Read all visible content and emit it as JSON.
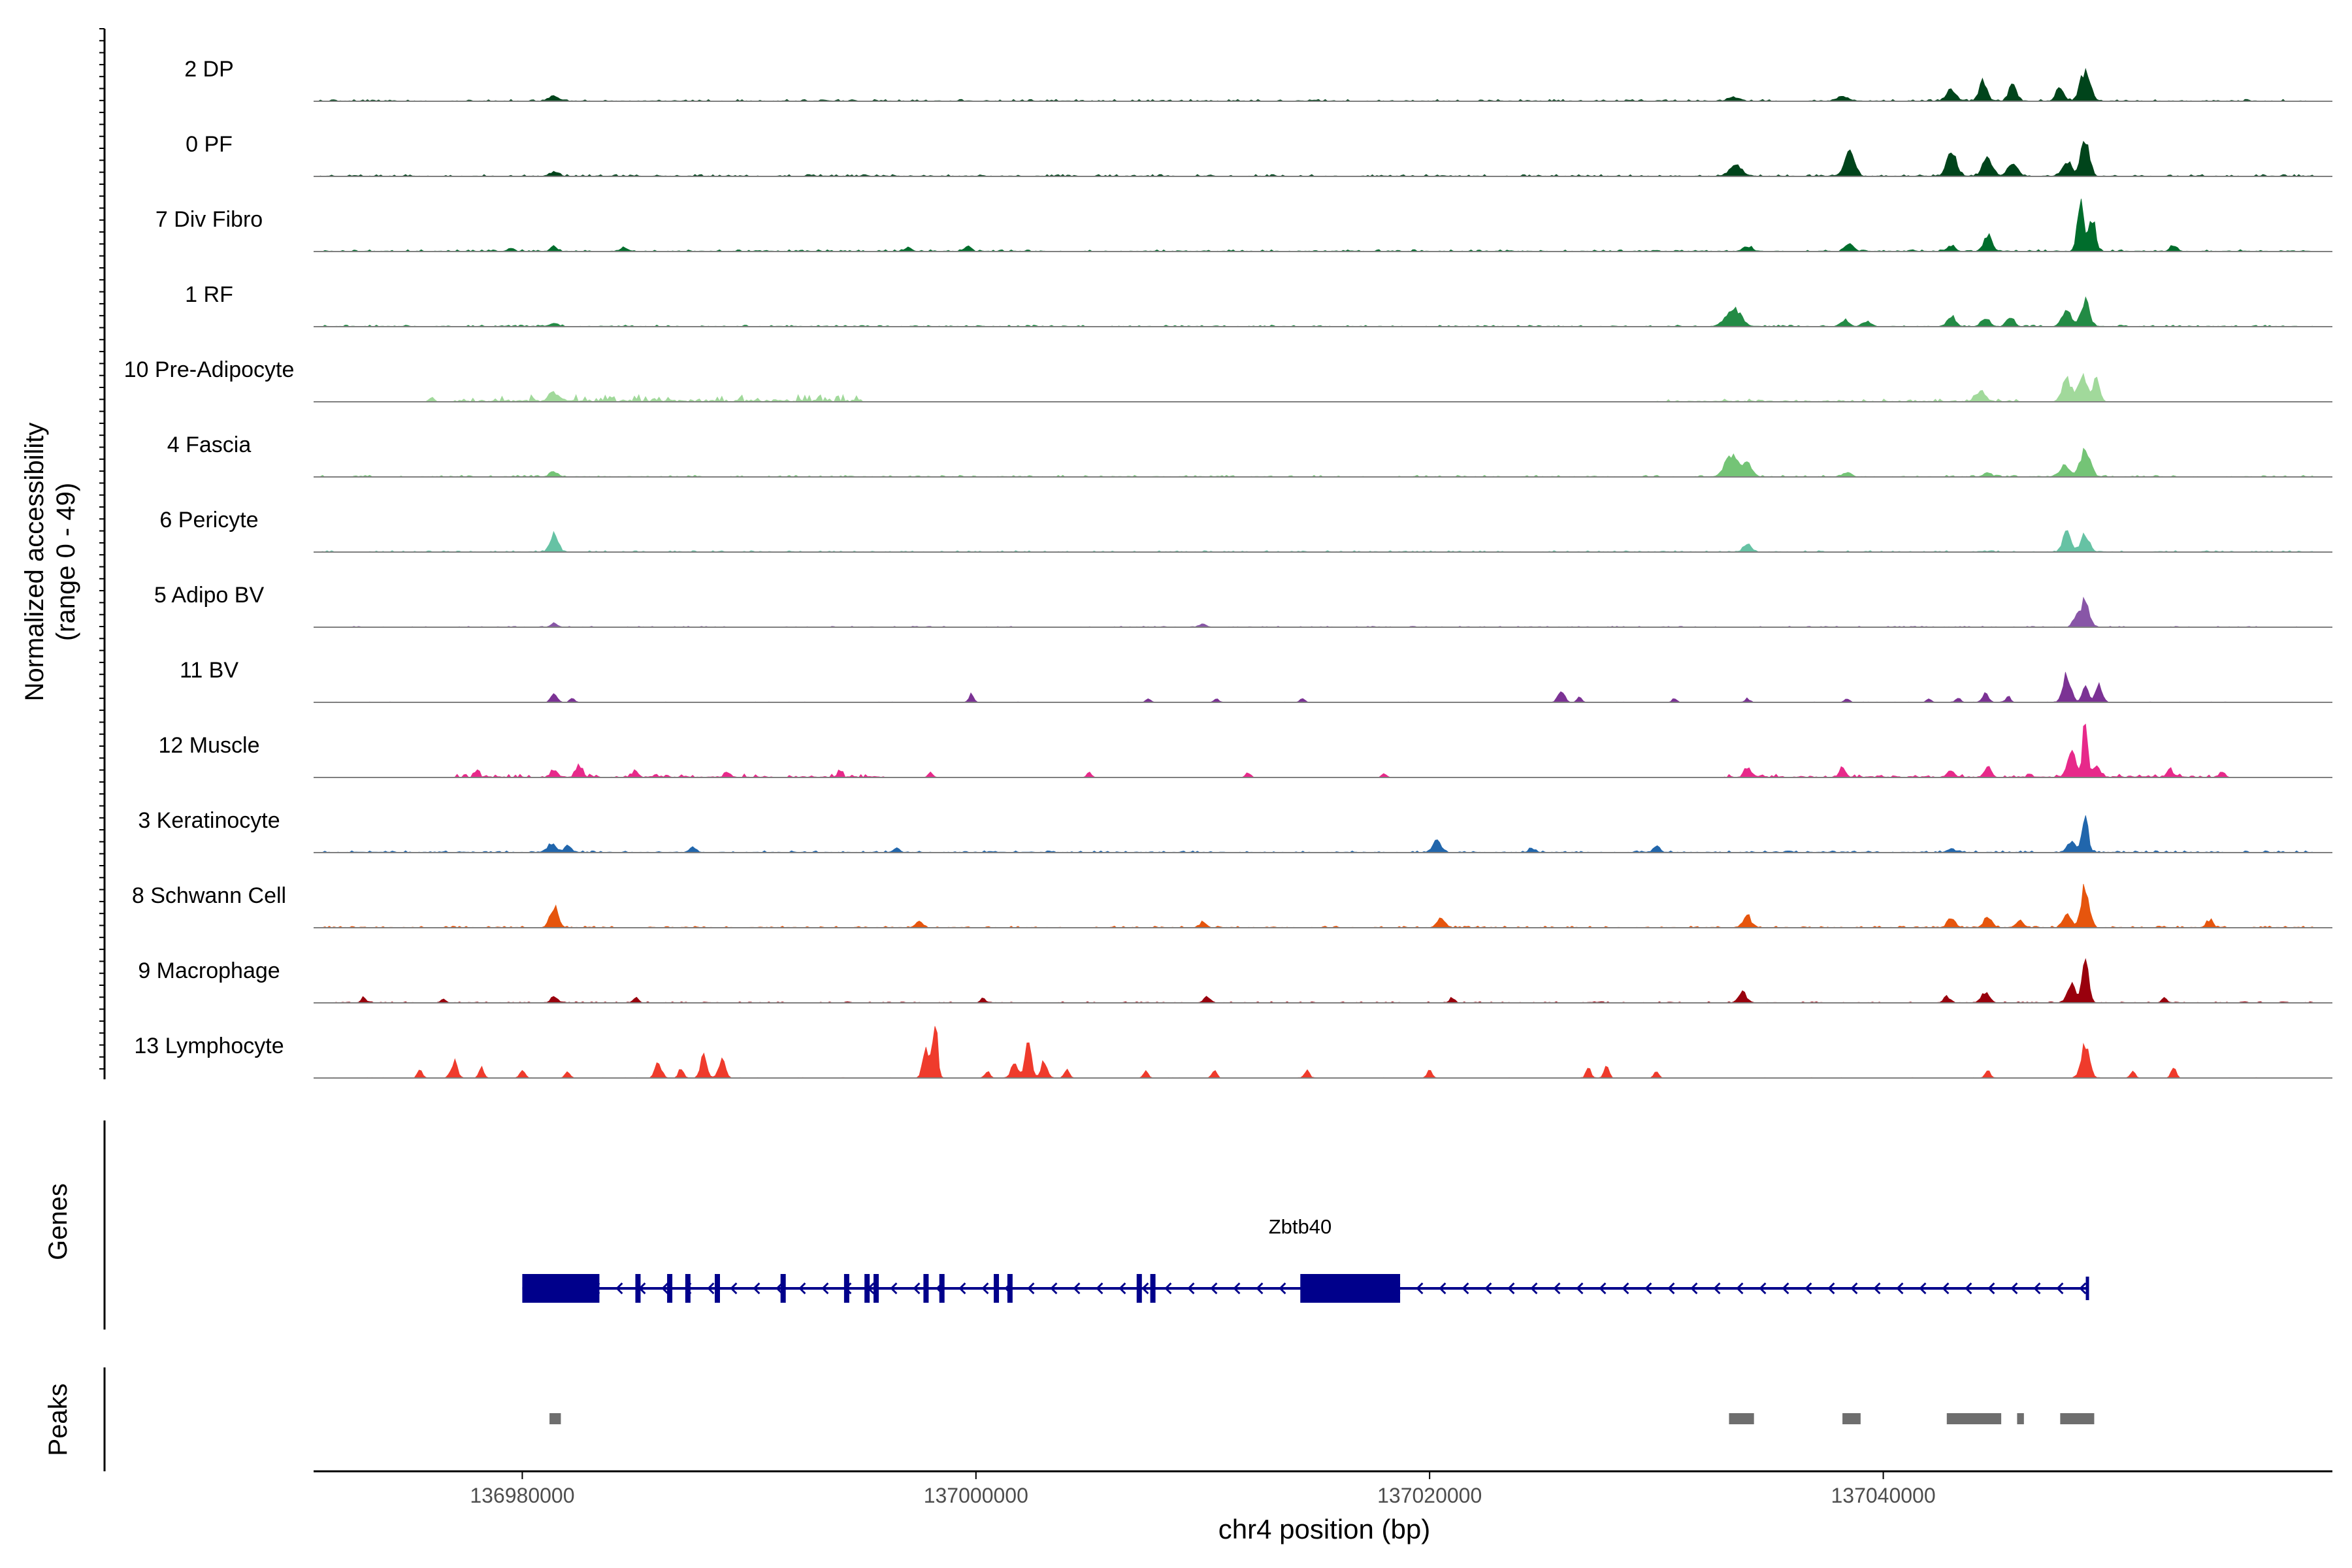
{
  "chart_data": {
    "type": "area",
    "description": "coverage",
    "y_axis_title_line1": "Normalized accessibility",
    "y_axis_title_line2": "(range 0 - 49)",
    "ylim": [
      0,
      49
    ],
    "xlim": [
      136970800,
      137059800
    ],
    "xlabel": "chr4 position (bp)",
    "x_ticks": [
      136980000,
      137000000,
      137020000,
      137040000
    ],
    "x_tick_labels": [
      "136980000",
      "137000000",
      "137020000",
      "137040000"
    ],
    "tracks": [
      {
        "label": "2 DP",
        "color": "#00441b",
        "noise": [
          [
            136971000,
            137059000,
            0.8
          ]
        ],
        "peaks": [
          [
            136981400,
            3.5,
            300
          ],
          [
            137033400,
            3,
            350
          ],
          [
            137038200,
            4,
            350
          ],
          [
            137043000,
            9,
            300
          ],
          [
            137044400,
            15,
            250
          ],
          [
            137045700,
            12,
            250
          ],
          [
            137047800,
            10,
            250
          ],
          [
            137048900,
            25,
            300
          ]
        ]
      },
      {
        "label": "0 PF",
        "color": "#00441b",
        "noise": [
          [
            136971000,
            137059000,
            0.8
          ]
        ],
        "peaks": [
          [
            136981400,
            3,
            300
          ],
          [
            137033500,
            8,
            400
          ],
          [
            137038500,
            20,
            300
          ],
          [
            137043000,
            20,
            300
          ],
          [
            137044600,
            15,
            300
          ],
          [
            137045700,
            10,
            300
          ],
          [
            137048100,
            12,
            300
          ],
          [
            137048900,
            32,
            250
          ]
        ]
      },
      {
        "label": "7 Div Fibro",
        "color": "#006d2c",
        "noise": [
          [
            136971000,
            137059000,
            0.8
          ]
        ],
        "peaks": [
          [
            136979500,
            2.5,
            200
          ],
          [
            136981400,
            4,
            200
          ],
          [
            136984500,
            3.5,
            200
          ],
          [
            136997000,
            3,
            200
          ],
          [
            136999600,
            3.5,
            200
          ],
          [
            137034000,
            3.5,
            300
          ],
          [
            137038500,
            7,
            250
          ],
          [
            137043000,
            4,
            250
          ],
          [
            137044600,
            13,
            250
          ],
          [
            137048700,
            40,
            200
          ],
          [
            137049200,
            28,
            200
          ],
          [
            137052800,
            5,
            200
          ]
        ]
      },
      {
        "label": "1 RF",
        "color": "#238b45",
        "noise": [
          [
            136971000,
            137059000,
            0.7
          ]
        ],
        "peaks": [
          [
            136981400,
            2.5,
            250
          ],
          [
            137033400,
            14,
            450
          ],
          [
            137038300,
            5,
            250
          ],
          [
            137039300,
            4,
            250
          ],
          [
            137043000,
            8,
            250
          ],
          [
            137044500,
            6,
            250
          ],
          [
            137045600,
            6,
            250
          ],
          [
            137048100,
            12,
            300
          ],
          [
            137048900,
            20,
            250
          ]
        ]
      },
      {
        "label": "10 Pre-Adipocyte",
        "color": "#a1d99b",
        "noise": [
          [
            136977000,
            136995000,
            3
          ],
          [
            137030000,
            137046000,
            1.2
          ]
        ],
        "peaks": [
          [
            136981400,
            6,
            300
          ],
          [
            136976000,
            4,
            150
          ],
          [
            137044300,
            8,
            300
          ],
          [
            137048100,
            18,
            300
          ],
          [
            137048800,
            24,
            250
          ],
          [
            137049400,
            20,
            200
          ]
        ]
      },
      {
        "label": "4 Fascia",
        "color": "#74c476",
        "noise": [
          [
            136971000,
            137059000,
            0.7
          ]
        ],
        "peaks": [
          [
            136981400,
            4,
            250
          ],
          [
            137033300,
            18,
            400
          ],
          [
            137034000,
            10,
            300
          ],
          [
            137038400,
            4,
            250
          ],
          [
            137044600,
            3,
            250
          ],
          [
            137048000,
            10,
            300
          ],
          [
            137048900,
            22,
            300
          ]
        ]
      },
      {
        "label": "6 Pericyte",
        "color": "#66c2a4",
        "noise": [
          [
            136971000,
            137059000,
            0.6
          ]
        ],
        "peaks": [
          [
            136981400,
            14,
            250
          ],
          [
            137034000,
            6,
            250
          ],
          [
            137048100,
            18,
            250
          ],
          [
            137048900,
            14,
            250
          ]
        ]
      },
      {
        "label": "5 Adipo BV",
        "color": "#8856a7",
        "noise": [
          [
            136971000,
            137059000,
            0.4
          ]
        ],
        "peaks": [
          [
            136981400,
            3,
            200
          ],
          [
            137010000,
            2.5,
            200
          ],
          [
            137048500,
            8,
            200
          ],
          [
            137048900,
            22,
            250
          ]
        ]
      },
      {
        "label": "11 BV",
        "color": "#7b3294",
        "noise": [
          [
            136971000,
            137059000,
            0.2
          ]
        ],
        "peaks": [
          [
            136981400,
            7,
            200
          ],
          [
            136982200,
            3,
            150
          ],
          [
            136999800,
            7,
            150
          ],
          [
            137007600,
            3,
            150
          ],
          [
            137010600,
            3,
            150
          ],
          [
            137014400,
            3,
            150
          ],
          [
            137025800,
            10,
            200
          ],
          [
            137026600,
            4,
            150
          ],
          [
            137030800,
            3,
            150
          ],
          [
            137034000,
            3,
            150
          ],
          [
            137038400,
            3,
            150
          ],
          [
            137042000,
            3,
            150
          ],
          [
            137043300,
            4,
            150
          ],
          [
            137044500,
            7,
            200
          ],
          [
            137045500,
            5,
            150
          ],
          [
            137048100,
            22,
            250
          ],
          [
            137048900,
            12,
            200
          ],
          [
            137049500,
            16,
            200
          ]
        ]
      },
      {
        "label": "12 Muscle",
        "color": "#e7298a",
        "noise": [
          [
            136977000,
            136996000,
            1.5
          ],
          [
            137033000,
            137055000,
            1.5
          ]
        ],
        "peaks": [
          [
            136978000,
            4,
            150
          ],
          [
            136981400,
            6,
            200
          ],
          [
            136982500,
            10,
            200
          ],
          [
            136985000,
            4,
            150
          ],
          [
            136989000,
            5,
            150
          ],
          [
            136994000,
            5,
            150
          ],
          [
            136998000,
            4,
            150
          ],
          [
            137005000,
            4,
            150
          ],
          [
            137012000,
            4,
            150
          ],
          [
            137018000,
            3,
            150
          ],
          [
            137034000,
            8,
            200
          ],
          [
            137038200,
            7,
            200
          ],
          [
            137043000,
            5,
            200
          ],
          [
            137044600,
            9,
            200
          ],
          [
            137048300,
            22,
            250
          ],
          [
            137048900,
            46,
            150
          ],
          [
            137049400,
            10,
            200
          ],
          [
            137052600,
            7,
            150
          ],
          [
            137055000,
            4,
            150
          ]
        ]
      },
      {
        "label": "3 Keratinocyte",
        "color": "#2166ac",
        "noise": [
          [
            136971000,
            137059000,
            0.8
          ]
        ],
        "peaks": [
          [
            136981300,
            7,
            250
          ],
          [
            136982000,
            5,
            200
          ],
          [
            136987500,
            4,
            200
          ],
          [
            136996500,
            3,
            200
          ],
          [
            137020300,
            9,
            250
          ],
          [
            137024500,
            3,
            200
          ],
          [
            137030000,
            6,
            200
          ],
          [
            137043000,
            3,
            200
          ],
          [
            137048300,
            8,
            250
          ],
          [
            137048900,
            26,
            200
          ]
        ]
      },
      {
        "label": "8 Schwann Cell",
        "color": "#e6550d",
        "noise": [
          [
            136971000,
            137059000,
            0.7
          ]
        ],
        "peaks": [
          [
            136981400,
            17,
            250
          ],
          [
            136997500,
            5,
            200
          ],
          [
            137010000,
            4,
            200
          ],
          [
            137020500,
            8,
            250
          ],
          [
            137034000,
            9,
            250
          ],
          [
            137043000,
            7,
            250
          ],
          [
            137044600,
            8,
            250
          ],
          [
            137046000,
            5,
            250
          ],
          [
            137048100,
            10,
            250
          ],
          [
            137048900,
            32,
            250
          ],
          [
            137054400,
            6,
            200
          ]
        ]
      },
      {
        "label": "9 Macrophage",
        "color": "#99000d",
        "noise": [
          [
            136971000,
            137059000,
            0.5
          ]
        ],
        "peaks": [
          [
            136973000,
            4,
            150
          ],
          [
            136976500,
            3,
            150
          ],
          [
            136981400,
            5,
            200
          ],
          [
            136985000,
            4,
            150
          ],
          [
            137000300,
            4,
            150
          ],
          [
            137010200,
            5,
            200
          ],
          [
            137021000,
            4,
            150
          ],
          [
            137033800,
            8,
            250
          ],
          [
            137042800,
            5,
            200
          ],
          [
            137044500,
            8,
            250
          ],
          [
            137048300,
            15,
            250
          ],
          [
            137048900,
            35,
            200
          ],
          [
            137052400,
            4,
            150
          ]
        ]
      },
      {
        "label": "13 Lymphocyte",
        "color": "#ef3b2c",
        "noise": [
          [
            136971000,
            137059000,
            0.2
          ]
        ],
        "peaks": [
          [
            136975500,
            7,
            150
          ],
          [
            136977000,
            13,
            200
          ],
          [
            136978200,
            8,
            150
          ],
          [
            136980000,
            7,
            150
          ],
          [
            136982000,
            5,
            150
          ],
          [
            136986000,
            12,
            200
          ],
          [
            136987000,
            8,
            150
          ],
          [
            136988000,
            17,
            200
          ],
          [
            136988800,
            15,
            200
          ],
          [
            136997800,
            22,
            200
          ],
          [
            136998200,
            49,
            150
          ],
          [
            137000500,
            5,
            150
          ],
          [
            137001700,
            14,
            200
          ],
          [
            137002300,
            26,
            200
          ],
          [
            137003000,
            13,
            200
          ],
          [
            137004000,
            7,
            150
          ],
          [
            137007500,
            5,
            150
          ],
          [
            137010500,
            6,
            150
          ],
          [
            137014600,
            6,
            150
          ],
          [
            137020000,
            6,
            150
          ],
          [
            137027000,
            8,
            150
          ],
          [
            137027800,
            9,
            150
          ],
          [
            137030000,
            5,
            150
          ],
          [
            137044600,
            6,
            150
          ],
          [
            137048900,
            28,
            250
          ],
          [
            137051000,
            5,
            150
          ],
          [
            137052800,
            8,
            150
          ]
        ]
      }
    ],
    "genes_title": "Genes",
    "gene": {
      "name": "Zbtb40",
      "color": "#00008b",
      "start": 136980000,
      "end": 137049000,
      "strand": "-",
      "utr_blocks": [
        [
          136980000,
          136983400
        ],
        [
          137014300,
          137018700
        ]
      ],
      "exons": [
        136985100,
        136986500,
        136987300,
        136988600,
        136991500,
        136994300,
        136995200,
        136995600,
        136997800,
        136998500,
        137000900,
        137001500,
        137007200,
        137007800
      ]
    },
    "peaks_title": "Peaks",
    "peak_regions": [
      [
        136981200,
        136981700
      ],
      [
        137033200,
        137034300
      ],
      [
        137038200,
        137039000
      ],
      [
        137042800,
        137045200
      ],
      [
        137045900,
        137046200
      ],
      [
        137047800,
        137049300
      ]
    ]
  }
}
